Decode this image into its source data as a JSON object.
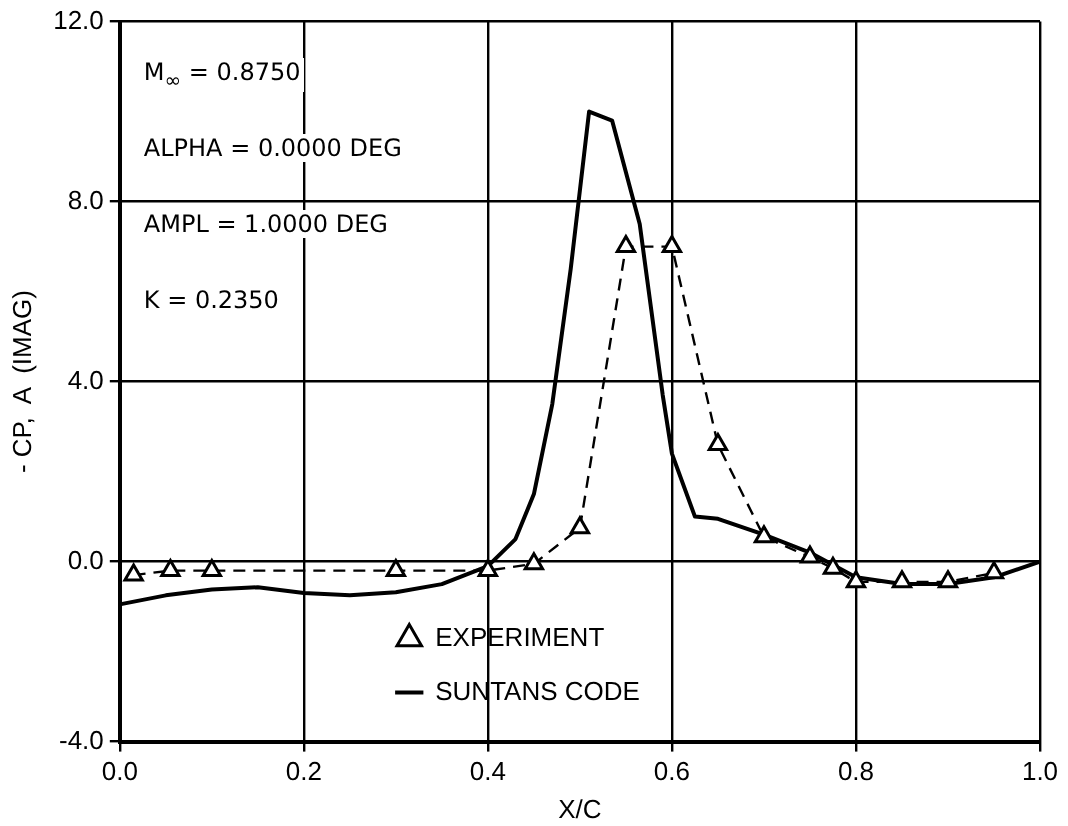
{
  "chart_data": {
    "type": "line",
    "xlabel": "X/C",
    "ylabel": "- CP,  A  (IMAG)",
    "xlim": [
      0,
      1
    ],
    "xticks": [
      {
        "value": 0,
        "label": "0.0"
      },
      {
        "value": 0.2,
        "label": "0.2"
      },
      {
        "value": 0.4,
        "label": "0.4"
      },
      {
        "value": 0.6,
        "label": "0.6"
      },
      {
        "value": 0.8,
        "label": "0.8"
      },
      {
        "value": 1,
        "label": "1.0"
      }
    ],
    "ylim": [
      -4,
      12
    ],
    "yticks": [
      {
        "value": -4,
        "label": "-4.0"
      },
      {
        "value": 0,
        "label": "0.0"
      },
      {
        "value": 4,
        "label": "4.0"
      },
      {
        "value": 8,
        "label": "8.0"
      },
      {
        "value": 12,
        "label": "12.0"
      }
    ],
    "grid": true,
    "legend": "bottom",
    "annotations": [
      "M$_{∞}$ = 0.8750",
      "ALPHA = 0.0000 DEG",
      "AMPL = 1.0000 DEG",
      "K = 0.2350"
    ],
    "series": [
      {
        "name": "EXPERIMENT",
        "color": "#000000",
        "line_style": "dashed",
        "marker": "triangle",
        "x": [
          0.015,
          0.055,
          0.1,
          0.3,
          0.4,
          0.45,
          0.5,
          0.55,
          0.6,
          0.65,
          0.7,
          0.75,
          0.775,
          0.8,
          0.85,
          0.9,
          0.95
        ],
        "values": [
          -0.3,
          -0.2,
          -0.2,
          -0.2,
          -0.2,
          -0.05,
          0.75,
          7.0,
          7.0,
          2.6,
          0.55,
          0.1,
          -0.15,
          -0.45,
          -0.45,
          -0.45,
          -0.25
        ]
      },
      {
        "name": "SUNTANS CODE",
        "color": "#000000",
        "line_style": "solid",
        "marker": "none",
        "x": [
          0,
          0.05,
          0.1,
          0.15,
          0.2,
          0.25,
          0.3,
          0.35,
          0.4,
          0.43,
          0.45,
          0.47,
          0.49,
          0.51,
          0.535,
          0.565,
          0.59,
          0.6,
          0.625,
          0.65,
          0.7,
          0.75,
          0.8,
          0.85,
          0.9,
          0.95,
          1.0
        ],
        "values": [
          -0.95,
          -0.75,
          -0.62,
          -0.57,
          -0.7,
          -0.75,
          -0.68,
          -0.5,
          -0.1,
          0.5,
          1.5,
          3.5,
          6.5,
          10.0,
          9.8,
          7.5,
          3.7,
          2.4,
          1.0,
          0.95,
          0.6,
          0.2,
          -0.35,
          -0.5,
          -0.5,
          -0.35,
          0.0
        ]
      }
    ]
  }
}
